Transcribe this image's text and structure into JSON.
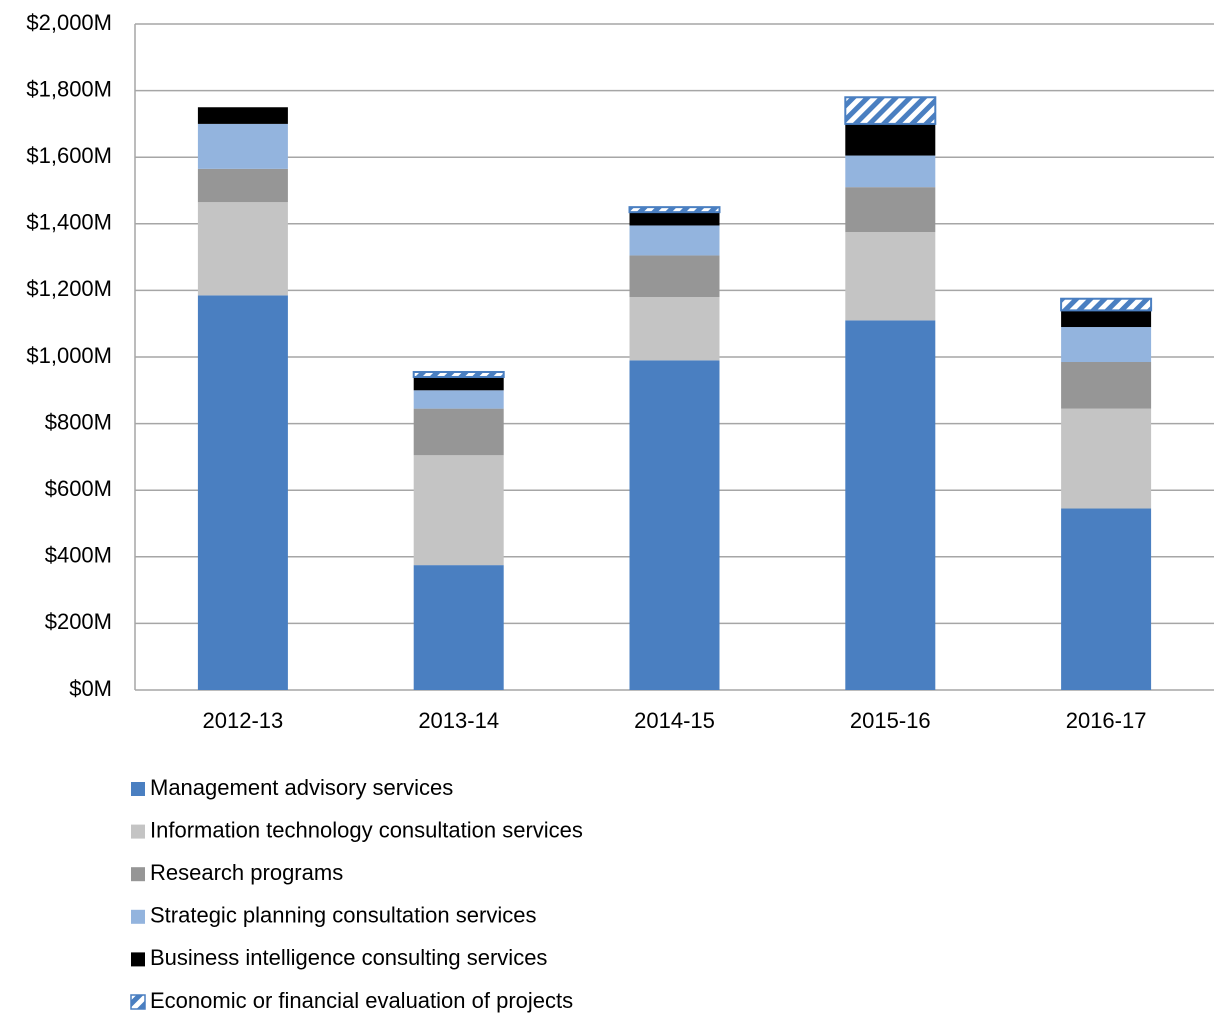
{
  "chart_data": {
    "type": "stacked_bar",
    "categories": [
      "2012-13",
      "2013-14",
      "2014-15",
      "2015-16",
      "2016-17"
    ],
    "series": [
      {
        "name": "Management advisory services",
        "color": "#4a7fc1",
        "values": [
          1185,
          375,
          990,
          1110,
          545
        ]
      },
      {
        "name": "Information technology consultation services",
        "color": "#c4c4c4",
        "values": [
          280,
          330,
          190,
          265,
          300
        ]
      },
      {
        "name": "Research programs",
        "color": "#969696",
        "values": [
          100,
          140,
          125,
          135,
          140
        ]
      },
      {
        "name": "Strategic planning consultation services",
        "color": "#93b4de",
        "values": [
          135,
          55,
          90,
          95,
          105
        ]
      },
      {
        "name": "Business intelligence consulting services",
        "color": "#000000",
        "values": [
          50,
          40,
          40,
          95,
          50
        ]
      },
      {
        "name": "Economic or financial evaluation of projects",
        "color": "#4a7fc1",
        "hatch": true,
        "values": [
          0,
          15,
          15,
          80,
          35
        ]
      }
    ],
    "ylim": [
      0,
      2000
    ],
    "yticks": [
      {
        "value": 0,
        "label": "$0M"
      },
      {
        "value": 200,
        "label": "$200M"
      },
      {
        "value": 400,
        "label": "$400M"
      },
      {
        "value": 600,
        "label": "$600M"
      },
      {
        "value": 800,
        "label": "$800M"
      },
      {
        "value": 1000,
        "label": "$1,000M"
      },
      {
        "value": 1200,
        "label": "$1,200M"
      },
      {
        "value": 1400,
        "label": "$1,400M"
      },
      {
        "value": 1600,
        "label": "$1,600M"
      },
      {
        "value": 1800,
        "label": "$1,800M"
      },
      {
        "value": 2000,
        "label": "$2,000M"
      }
    ],
    "grid": true,
    "legend": "bottom"
  }
}
